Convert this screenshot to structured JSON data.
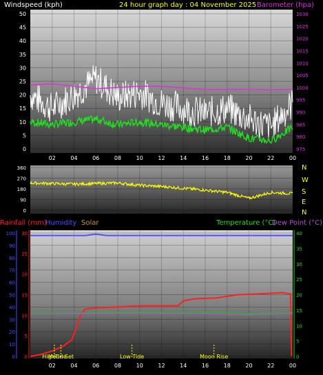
{
  "header": {
    "left_label": "Windspeed (kph)",
    "center_label": "24 hour graph day : 04 November 2025",
    "right_label": "Barometer (hpa)"
  },
  "colors": {
    "background": "#000000",
    "wind_gust": "#ffffff",
    "wind_avg": "#22dd22",
    "barometer": "#dd33dd",
    "direction": "#ffff00",
    "rainfall": "#ff2020",
    "humidity": "#4f4fff",
    "solar": "#cc9933",
    "temperature": "#22bb22",
    "dew_point": "#aa55cc",
    "panel_light": "#cfcfcf",
    "panel_dark": "#3a3a3a"
  },
  "chart_data": [
    {
      "type": "line",
      "panel": "wind_barometer",
      "x_ticks": [
        "02",
        "04",
        "06",
        "08",
        "10",
        "12",
        "14",
        "16",
        "18",
        "20",
        "22",
        "00"
      ],
      "y_ticks_left": [
        "0",
        "5",
        "10",
        "15",
        "20",
        "25",
        "30",
        "35",
        "40",
        "45",
        "50"
      ],
      "y_ticks_right": [
        "975",
        "980",
        "985",
        "990",
        "995",
        "1000",
        "1005",
        "1010",
        "1015",
        "1020",
        "1025",
        "1030"
      ],
      "ylim_left": [
        0,
        50
      ],
      "ylim_right": [
        975,
        1030
      ],
      "x_hours": [
        0,
        2,
        4,
        6,
        8,
        10,
        12,
        14,
        16,
        18,
        20,
        22,
        24
      ],
      "series": [
        {
          "name": "Windspeed (kph)",
          "style": "gust",
          "values": [
            20,
            15,
            20,
            26,
            19,
            21,
            17,
            15,
            13,
            15,
            11,
            8,
            17
          ],
          "noise": 6
        },
        {
          "name": "Windspeed (kph)",
          "style": "avg",
          "values": [
            10,
            9,
            10,
            11,
            9,
            10,
            9,
            8,
            7,
            8,
            4,
            3,
            8
          ],
          "noise": 1.5
        },
        {
          "name": "Barometer (hpa)",
          "style": "baro",
          "values": [
            1001,
            1001.5,
            1000.5,
            999.5,
            1000,
            1000.5,
            1000.5,
            999.8,
            999.2,
            999.2,
            999.3,
            999.0,
            999.3
          ],
          "noise": 0
        }
      ]
    },
    {
      "type": "line",
      "panel": "wind_direction",
      "y_ticks": [
        "0",
        "90",
        "180",
        "270",
        "360"
      ],
      "ylim": [
        0,
        360
      ],
      "compass": [
        "N",
        "W",
        "S",
        "E",
        "N"
      ],
      "x_hours": [
        0,
        2,
        4,
        6,
        8,
        10,
        12,
        14,
        16,
        18,
        20,
        22,
        24
      ],
      "series": [
        {
          "name": "Wind direction",
          "values": [
            230,
            225,
            220,
            225,
            230,
            210,
            200,
            185,
            170,
            150,
            100,
            150,
            140
          ],
          "noise": 12
        }
      ]
    },
    {
      "type": "line",
      "panel": "rain_temp",
      "legend_left": [
        {
          "label": "Rainfall (mm)",
          "color_key": "rainfall"
        },
        {
          "label": "Humidity",
          "color_key": "humidity"
        },
        {
          "label": "Solar",
          "color_key": "solar"
        }
      ],
      "legend_right": [
        {
          "label": "Temperature (°C)",
          "color_key": "temperature"
        },
        {
          "label": "Dew Point (°C)",
          "color_key": "dew_point"
        }
      ],
      "y_ticks_left_outer": [
        "0",
        "10",
        "20",
        "30",
        "40",
        "50",
        "60",
        "70",
        "80",
        "90",
        "100"
      ],
      "y_ticks_left_inner": [
        "0",
        "5",
        "10",
        "15",
        "20",
        "25",
        "30"
      ],
      "y_ticks_right": [
        "0",
        "5",
        "10",
        "15",
        "20",
        "25",
        "30",
        "35",
        "40"
      ],
      "ylim_humidity": [
        0,
        100
      ],
      "ylim_rain": [
        0,
        30
      ],
      "ylim_temp": [
        0,
        40
      ],
      "x_ticks": [
        "02",
        "04",
        "06",
        "08",
        "10",
        "12",
        "14",
        "16",
        "18",
        "20",
        "22",
        "00"
      ],
      "events": [
        {
          "label": "HighTide",
          "hour": 2.2
        },
        {
          "label": "Moon Set",
          "hour": 2.8
        },
        {
          "label": "Low Tide",
          "hour": 9.3
        },
        {
          "label": "Moon Rise",
          "hour": 16.8
        }
      ],
      "series": [
        {
          "name": "Rainfall (mm)",
          "x": [
            0,
            1,
            2,
            3,
            3.8,
            4.2,
            4.6,
            5,
            6,
            8,
            10,
            12,
            13.5,
            14,
            15,
            17,
            19,
            21,
            23,
            23.8,
            23.9
          ],
          "values": [
            0,
            0.5,
            1.3,
            2.5,
            4,
            7,
            10,
            11.5,
            11.8,
            12,
            12.3,
            12.3,
            12.3,
            13.5,
            14,
            14.2,
            15,
            15.2,
            15.5,
            15.2,
            0
          ]
        },
        {
          "name": "Humidity",
          "x": [
            0,
            5,
            6,
            7,
            24
          ],
          "values": [
            98,
            98,
            99,
            98,
            98
          ]
        },
        {
          "name": "Temperature (°C)",
          "x": [
            0,
            4,
            8,
            12,
            14,
            16,
            18,
            20,
            22,
            24
          ],
          "values": [
            14.2,
            14,
            14.3,
            14.2,
            14.2,
            14.3,
            14.1,
            13.8,
            14,
            14.2
          ]
        },
        {
          "name": "Dew Point (°C)",
          "x": [
            0,
            4,
            8,
            12,
            14,
            16,
            18,
            20,
            22,
            24
          ],
          "values": [
            13.7,
            13.8,
            14.0,
            13.9,
            13.8,
            13.8,
            13.6,
            13.5,
            13.7,
            13.9
          ]
        }
      ]
    }
  ]
}
